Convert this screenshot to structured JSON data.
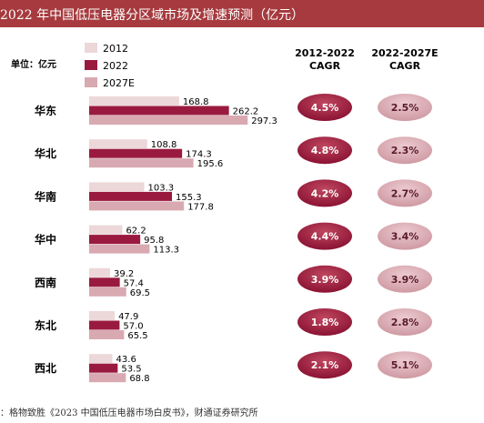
{
  "title": "2022 年中国低压电器分区域市场及增速预测（亿元）",
  "source": "：格物致胜《2023 中国低压电器市场白皮书》，财通证券研究所",
  "colors": {
    "title_bg": "#a63a3e",
    "s2012": "#ecd7d9",
    "s2022": "#9a1a3f",
    "s2027": "#d9a9b1",
    "cagr1": "#9a1a3f",
    "cagr2": "#d9a9b1"
  },
  "chart_data": {
    "type": "bar",
    "orientation": "horizontal",
    "unit_label": "单位：亿元",
    "categories": [
      "华东",
      "华北",
      "华南",
      "华中",
      "西南",
      "东北",
      "西北"
    ],
    "series": [
      {
        "name": "2012",
        "values": [
          168.8,
          108.8,
          103.3,
          62.2,
          39.2,
          47.9,
          43.6
        ]
      },
      {
        "name": "2022",
        "values": [
          262.2,
          174.3,
          155.3,
          95.8,
          57.4,
          57.0,
          53.5
        ]
      },
      {
        "name": "2027E",
        "values": [
          297.3,
          195.6,
          177.8,
          113.3,
          69.5,
          65.5,
          68.8
        ]
      }
    ],
    "legend_position": "top-left",
    "grid": false,
    "cagr_columns": [
      {
        "header_line1": "2012-2022",
        "header_line2": "CAGR",
        "values": [
          "4.5%",
          "4.8%",
          "4.2%",
          "4.4%",
          "3.9%",
          "1.8%",
          "2.1%"
        ]
      },
      {
        "header_line1": "2022-2027E",
        "header_line2": "CAGR",
        "values": [
          "2.5%",
          "2.3%",
          "2.7%",
          "3.4%",
          "3.9%",
          "2.8%",
          "5.1%"
        ]
      }
    ]
  }
}
